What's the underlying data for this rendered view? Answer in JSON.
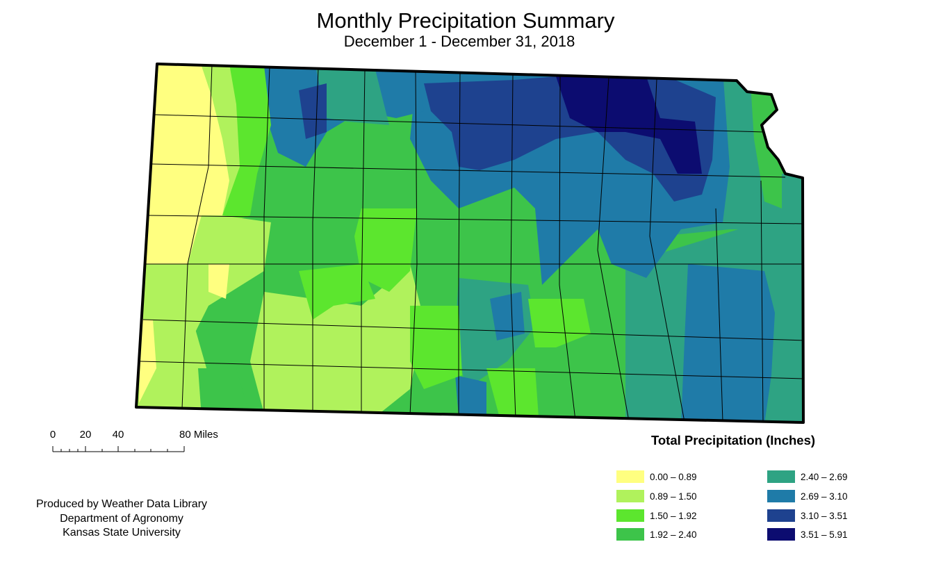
{
  "title": "Monthly Precipitation Summary",
  "subtitle": "December 1 - December 31, 2018",
  "scale": {
    "labels": [
      "0",
      "20",
      "40",
      "80 Miles"
    ],
    "miles": [
      0,
      20,
      40,
      80
    ]
  },
  "credits": [
    "Produced by Weather Data Library",
    "Department of Agronomy",
    "Kansas State University"
  ],
  "legend": {
    "title": "Total Precipitation (Inches)",
    "items": [
      {
        "label": "0.00 – 0.89",
        "color": "#ffff80"
      },
      {
        "label": "0.89 – 1.50",
        "color": "#b0f25c"
      },
      {
        "label": "1.50 – 1.92",
        "color": "#5ce62e"
      },
      {
        "label": "1.92 – 2.40",
        "color": "#3dc44a"
      },
      {
        "label": "2.40 – 2.69",
        "color": "#2ea383"
      },
      {
        "label": "2.69 – 3.10",
        "color": "#1f7ba8"
      },
      {
        "label": "3.10 – 3.51",
        "color": "#1e428f"
      },
      {
        "label": "3.51 – 5.91",
        "color": "#0c0c70"
      }
    ]
  }
}
